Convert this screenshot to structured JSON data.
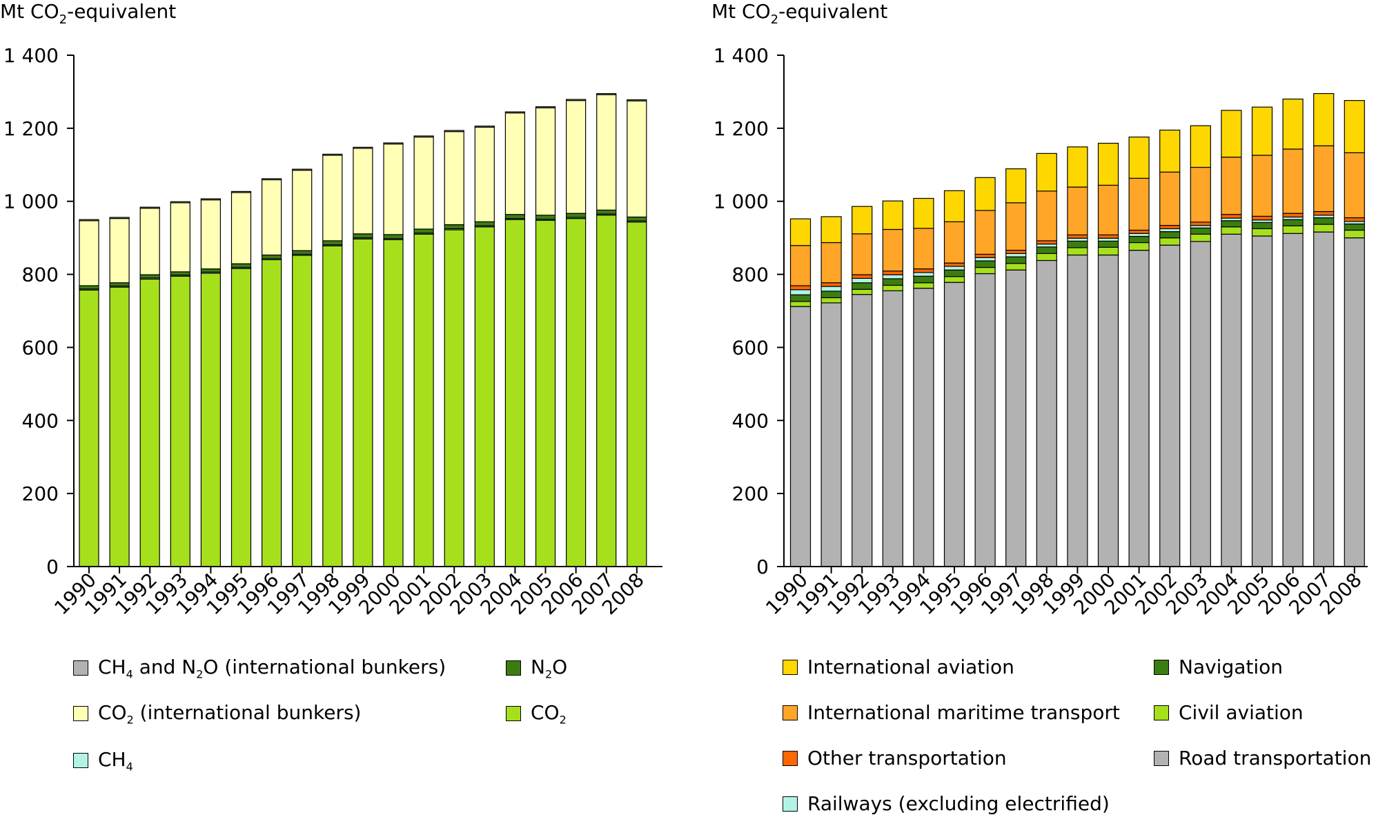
{
  "chart_data": [
    {
      "type": "bar",
      "stacked": true,
      "ylabel": "Mt CO2-equivalent",
      "ylim": [
        0,
        1400
      ],
      "yticks": [
        "0",
        "200",
        "400",
        "600",
        "800",
        "1 000",
        "1 200",
        "1 400"
      ],
      "categories": [
        "1990",
        "1991",
        "1992",
        "1993",
        "1994",
        "1995",
        "1996",
        "1997",
        "1998",
        "1999",
        "2000",
        "2001",
        "2002",
        "2003",
        "2004",
        "2005",
        "2006",
        "2007",
        "2008"
      ],
      "series": [
        {
          "name": "CO2",
          "color": "#a6e01d",
          "values": [
            757,
            765,
            787,
            795,
            803,
            816,
            840,
            852,
            878,
            897,
            895,
            910,
            922,
            930,
            950,
            948,
            953,
            962,
            943
          ]
        },
        {
          "name": "CH4",
          "color": "#b3f3e6",
          "values": [
            3,
            3,
            3,
            3,
            3,
            3,
            3,
            3,
            3,
            3,
            3,
            3,
            3,
            3,
            3,
            3,
            3,
            3,
            3
          ]
        },
        {
          "name": "N2O",
          "color": "#3c7d12",
          "values": [
            9,
            9,
            9,
            9,
            9,
            10,
            10,
            10,
            11,
            11,
            11,
            11,
            11,
            11,
            11,
            11,
            11,
            11,
            11
          ]
        },
        {
          "name": "CO2 (international bunkers)",
          "color": "#ffffb5",
          "values": [
            178,
            176,
            182,
            189,
            189,
            195,
            206,
            220,
            234,
            234,
            248,
            252,
            255,
            259,
            278,
            294,
            309,
            316,
            318
          ]
        },
        {
          "name": "CH4 and N2O (international bunkers)",
          "color": "#b2b2b2",
          "values": [
            3,
            3,
            3,
            3,
            3,
            3,
            3,
            3,
            3,
            3,
            3,
            3,
            3,
            3,
            3,
            3,
            3,
            3,
            3
          ]
        }
      ],
      "legend": [
        {
          "label": "CH4 and N2O (international bunkers)",
          "color": "#b2b2b2"
        },
        {
          "label": "N2O",
          "color": "#3c7d12"
        },
        {
          "label": "CO2 (international bunkers)",
          "color": "#ffffb5"
        },
        {
          "label": "CO2",
          "color": "#a6e01d"
        },
        {
          "label": "CH4",
          "color": "#b3f3e6"
        }
      ]
    },
    {
      "type": "bar",
      "stacked": true,
      "ylabel": "Mt CO2-equivalent",
      "ylim": [
        0,
        1400
      ],
      "yticks": [
        "0",
        "200",
        "400",
        "600",
        "800",
        "1 000",
        "1 200",
        "1 400"
      ],
      "categories": [
        "1990",
        "1991",
        "1992",
        "1993",
        "1994",
        "1995",
        "1996",
        "1997",
        "1998",
        "1999",
        "2000",
        "2001",
        "2002",
        "2003",
        "2004",
        "2005",
        "2006",
        "2007",
        "2008"
      ],
      "series": [
        {
          "name": "Road transportation",
          "color": "#b2b2b2",
          "values": [
            712,
            722,
            745,
            755,
            762,
            778,
            802,
            812,
            838,
            853,
            853,
            866,
            880,
            890,
            910,
            905,
            912,
            916,
            900
          ]
        },
        {
          "name": "Civil aviation",
          "color": "#a6e01d",
          "values": [
            14,
            14,
            14,
            15,
            15,
            16,
            17,
            18,
            19,
            20,
            21,
            21,
            20,
            20,
            20,
            20,
            21,
            21,
            21
          ]
        },
        {
          "name": "Navigation",
          "color": "#3c7d12",
          "values": [
            18,
            18,
            18,
            18,
            18,
            18,
            18,
            18,
            18,
            18,
            17,
            17,
            17,
            17,
            17,
            17,
            17,
            18,
            17
          ]
        },
        {
          "name": "Railways (excluding electrified)",
          "color": "#b3f3e6",
          "values": [
            14,
            13,
            12,
            11,
            10,
            10,
            9,
            9,
            8,
            8,
            8,
            8,
            8,
            7,
            7,
            7,
            7,
            7,
            7
          ]
        },
        {
          "name": "Other transportation",
          "color": "#ff6600",
          "values": [
            11,
            10,
            10,
            10,
            10,
            9,
            9,
            9,
            9,
            9,
            9,
            9,
            9,
            9,
            10,
            10,
            10,
            10,
            10
          ]
        },
        {
          "name": "International maritime transport",
          "color": "#ffa528",
          "values": [
            110,
            110,
            112,
            114,
            111,
            113,
            120,
            130,
            136,
            131,
            136,
            142,
            146,
            150,
            157,
            167,
            176,
            180,
            178
          ]
        },
        {
          "name": "International aviation",
          "color": "#ffd700",
          "values": [
            73,
            71,
            75,
            78,
            82,
            85,
            90,
            93,
            103,
            110,
            115,
            113,
            115,
            114,
            128,
            132,
            137,
            143,
            143
          ]
        }
      ],
      "legend": [
        {
          "label": "International aviation",
          "color": "#ffd700"
        },
        {
          "label": "Navigation",
          "color": "#3c7d12"
        },
        {
          "label": "International maritime transport",
          "color": "#ffa528"
        },
        {
          "label": "Civil aviation",
          "color": "#a6e01d"
        },
        {
          "label": "Other transportation",
          "color": "#ff6600"
        },
        {
          "label": "Road transportation",
          "color": "#b2b2b2"
        },
        {
          "label": "Railways (excluding electrified)",
          "color": "#b3f3e6"
        }
      ]
    }
  ]
}
